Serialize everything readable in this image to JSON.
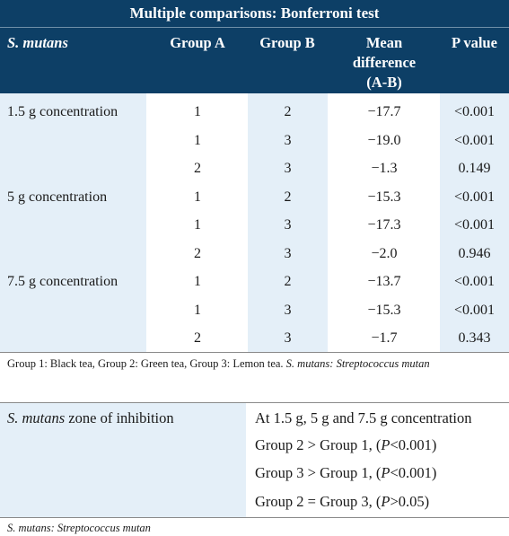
{
  "table1": {
    "title": "Multiple comparisons: Bonferroni test",
    "headers": {
      "organism": "S. mutans",
      "group_a": "Group A",
      "group_b": "Group B",
      "mean_line1": "Mean",
      "mean_line2": "difference",
      "mean_line3": "(A-B)",
      "p_value": "P value"
    },
    "rows": [
      {
        "label": "1.5 g concentration",
        "a": "1",
        "b": "2",
        "mean": "−17.7",
        "p": "<0.001"
      },
      {
        "label": "",
        "a": "1",
        "b": "3",
        "mean": "−19.0",
        "p": "<0.001"
      },
      {
        "label": "",
        "a": "2",
        "b": "3",
        "mean": "−1.3",
        "p": "0.149"
      },
      {
        "label": "5 g concentration",
        "a": "1",
        "b": "2",
        "mean": "−15.3",
        "p": "<0.001"
      },
      {
        "label": "",
        "a": "1",
        "b": "3",
        "mean": "−17.3",
        "p": "<0.001"
      },
      {
        "label": "",
        "a": "2",
        "b": "3",
        "mean": "−2.0",
        "p": "0.946"
      },
      {
        "label": "7.5 g concentration",
        "a": "1",
        "b": "2",
        "mean": "−13.7",
        "p": "<0.001"
      },
      {
        "label": "",
        "a": "1",
        "b": "3",
        "mean": "−15.3",
        "p": "<0.001"
      },
      {
        "label": "",
        "a": "2",
        "b": "3",
        "mean": "−1.7",
        "p": "0.343"
      }
    ],
    "footnote_plain": "Group 1: Black tea, Group 2: Green tea, Group 3: Lemon tea. ",
    "footnote_italic": "S. mutans: Streptococcus mutan"
  },
  "table2": {
    "head_italic": "S. mutans",
    "head_rest": " zone of inhibition",
    "lines": [
      {
        "pre": "At 1.5 g, 5 g and 7.5 g concentration",
        "p": "",
        "post": ""
      },
      {
        "pre": "Group 2 > Group 1, (",
        "p": "P",
        "post": "<0.001)"
      },
      {
        "pre": "Group 3 > Group 1, (",
        "p": "P",
        "post": "<0.001)"
      },
      {
        "pre": "Group 2 = Group 3, (",
        "p": "P",
        "post": ">0.05)"
      }
    ],
    "footnote_italic": "S. mutans: Streptococcus mutan"
  }
}
